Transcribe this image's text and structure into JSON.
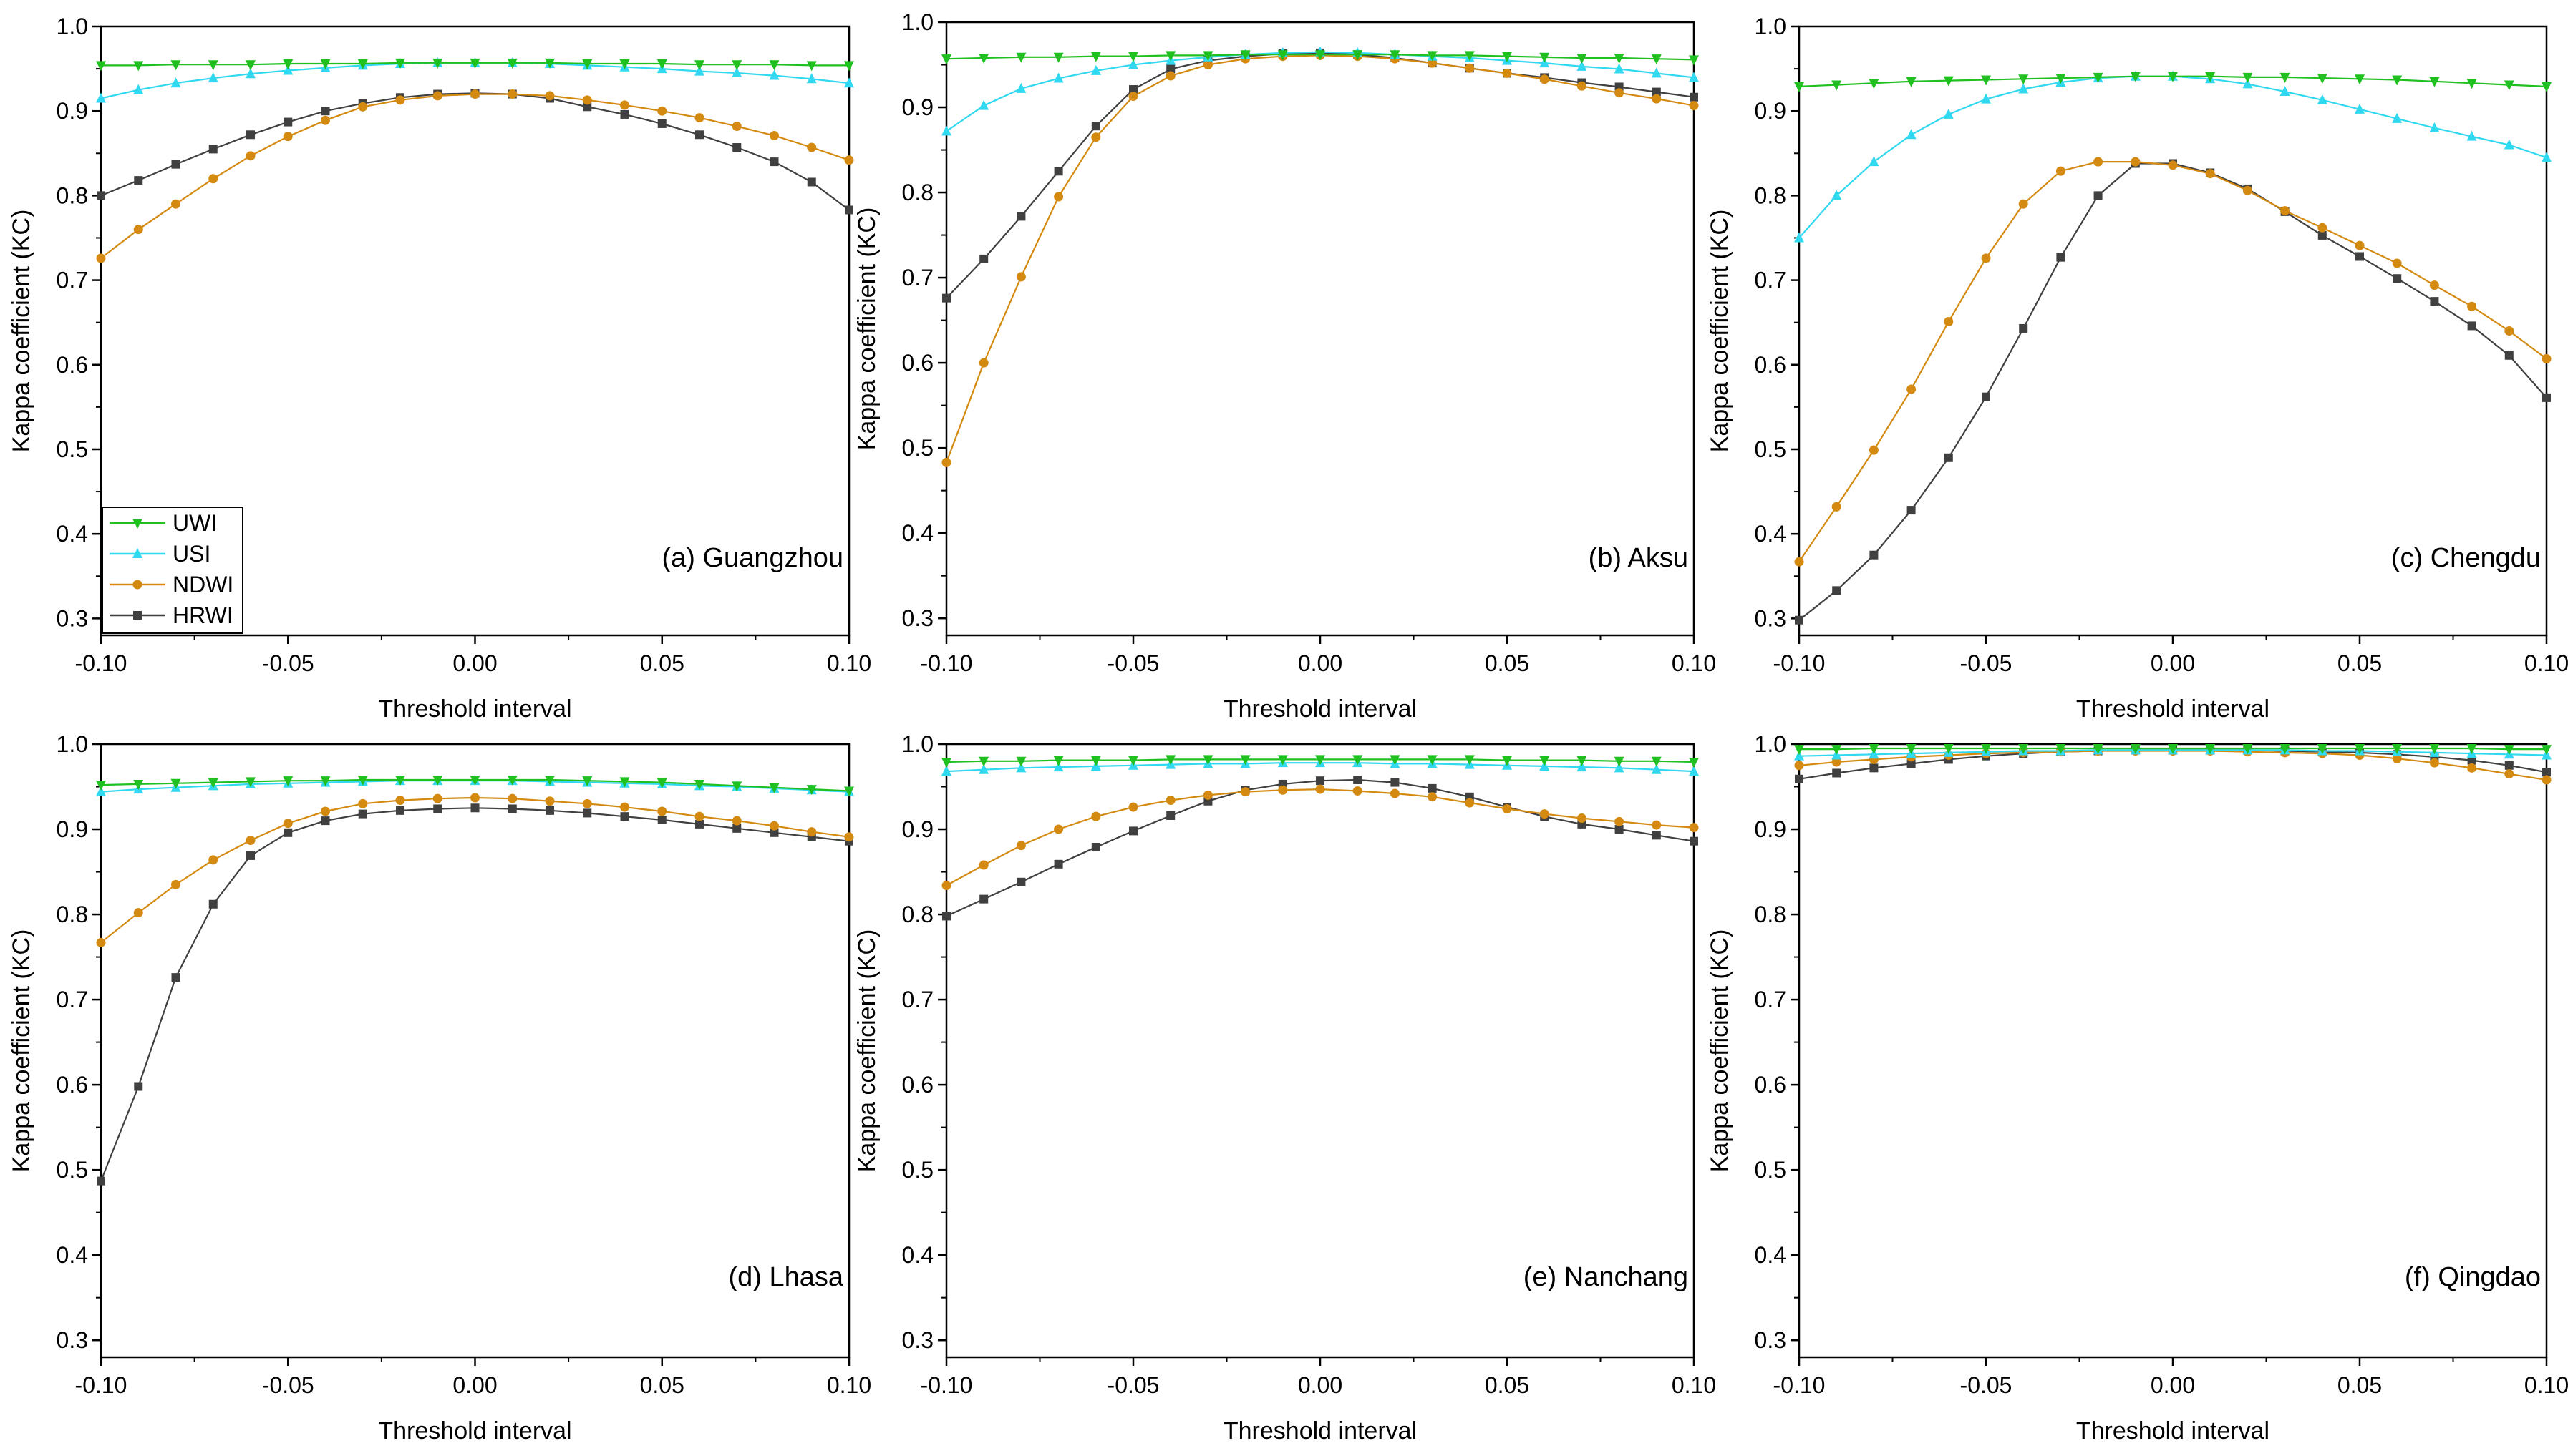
{
  "figure": {
    "legend_entries": [
      "UWI",
      "USI",
      "NDWI",
      "HRWI"
    ]
  },
  "colors": {
    "UWI": "#20c020",
    "USI": "#30d8f0",
    "NDWI": "#d48a10",
    "HRWI": "#404040"
  },
  "markers": {
    "UWI": "triangle-down",
    "USI": "triangle-up",
    "NDWI": "circle",
    "HRWI": "square"
  },
  "chart_data": [
    {
      "type": "line",
      "annotation": "(a) Guangzhou",
      "xlabel": "Threshold interval",
      "ylabel": "Kappa coefficient (KC)",
      "xlim": [
        -0.1,
        0.1
      ],
      "ylim": [
        0.28,
        1.0
      ],
      "xticks": [
        "-0.10",
        "-0.05",
        "0.00",
        "0.05",
        "0.10"
      ],
      "yticks": [
        "0.3",
        "0.4",
        "0.5",
        "0.6",
        "0.7",
        "0.8",
        "0.9",
        "1.0"
      ],
      "legend": "bottom-left",
      "x": [
        -0.1,
        -0.09,
        -0.08,
        -0.07,
        -0.06,
        -0.05,
        -0.04,
        -0.03,
        -0.02,
        -0.01,
        0.0,
        0.01,
        0.02,
        0.03,
        0.04,
        0.05,
        0.06,
        0.07,
        0.08,
        0.09,
        0.1
      ],
      "series": [
        {
          "name": "UWI",
          "values": [
            0.954,
            0.954,
            0.955,
            0.955,
            0.955,
            0.956,
            0.956,
            0.956,
            0.957,
            0.957,
            0.957,
            0.957,
            0.957,
            0.956,
            0.956,
            0.956,
            0.955,
            0.955,
            0.955,
            0.954,
            0.954
          ]
        },
        {
          "name": "USI",
          "values": [
            0.915,
            0.925,
            0.933,
            0.939,
            0.944,
            0.948,
            0.951,
            0.954,
            0.956,
            0.957,
            0.957,
            0.957,
            0.956,
            0.954,
            0.952,
            0.95,
            0.947,
            0.945,
            0.942,
            0.938,
            0.933
          ]
        },
        {
          "name": "NDWI",
          "values": [
            0.726,
            0.76,
            0.79,
            0.82,
            0.847,
            0.87,
            0.889,
            0.905,
            0.913,
            0.918,
            0.92,
            0.92,
            0.918,
            0.913,
            0.907,
            0.9,
            0.892,
            0.882,
            0.871,
            0.857,
            0.842
          ]
        },
        {
          "name": "HRWI",
          "values": [
            0.8,
            0.818,
            0.837,
            0.855,
            0.872,
            0.887,
            0.9,
            0.909,
            0.916,
            0.92,
            0.921,
            0.92,
            0.915,
            0.905,
            0.896,
            0.885,
            0.872,
            0.857,
            0.84,
            0.816,
            0.783
          ]
        }
      ]
    },
    {
      "type": "line",
      "annotation": "(b) Aksu",
      "xlabel": "Threshold interval",
      "ylabel": "Kappa coefficient (KC)",
      "xlim": [
        -0.1,
        0.1
      ],
      "ylim": [
        0.28,
        1.0
      ],
      "xticks": [
        "-0.10",
        "-0.05",
        "0.00",
        "0.05",
        "0.10"
      ],
      "yticks": [
        "0.3",
        "0.4",
        "0.5",
        "0.6",
        "0.7",
        "0.8",
        "0.9",
        "1.0"
      ],
      "x": [
        -0.1,
        -0.09,
        -0.08,
        -0.07,
        -0.06,
        -0.05,
        -0.04,
        -0.03,
        -0.02,
        -0.01,
        0.0,
        0.01,
        0.02,
        0.03,
        0.04,
        0.05,
        0.06,
        0.07,
        0.08,
        0.09,
        0.1
      ],
      "series": [
        {
          "name": "UWI",
          "values": [
            0.957,
            0.958,
            0.959,
            0.959,
            0.96,
            0.96,
            0.961,
            0.961,
            0.962,
            0.962,
            0.962,
            0.962,
            0.962,
            0.961,
            0.961,
            0.96,
            0.959,
            0.958,
            0.958,
            0.957,
            0.956
          ]
        },
        {
          "name": "USI",
          "values": [
            0.872,
            0.902,
            0.922,
            0.934,
            0.943,
            0.95,
            0.955,
            0.959,
            0.962,
            0.964,
            0.965,
            0.964,
            0.962,
            0.96,
            0.958,
            0.955,
            0.952,
            0.948,
            0.945,
            0.94,
            0.935
          ]
        },
        {
          "name": "NDWI",
          "values": [
            0.483,
            0.6,
            0.701,
            0.795,
            0.865,
            0.913,
            0.937,
            0.95,
            0.957,
            0.96,
            0.961,
            0.96,
            0.957,
            0.952,
            0.946,
            0.94,
            0.933,
            0.925,
            0.917,
            0.91,
            0.902
          ]
        },
        {
          "name": "HRWI",
          "values": [
            0.676,
            0.722,
            0.772,
            0.825,
            0.878,
            0.921,
            0.945,
            0.955,
            0.96,
            0.963,
            0.964,
            0.962,
            0.958,
            0.952,
            0.946,
            0.94,
            0.935,
            0.929,
            0.924,
            0.918,
            0.912
          ]
        }
      ]
    },
    {
      "type": "line",
      "annotation": "(c) Chengdu",
      "xlabel": "Threshold interval",
      "ylabel": "Kappa coefficient (KC)",
      "xlim": [
        -0.1,
        0.1
      ],
      "ylim": [
        0.28,
        1.0
      ],
      "xticks": [
        "-0.10",
        "-0.05",
        "0.00",
        "0.05",
        "0.10"
      ],
      "yticks": [
        "0.3",
        "0.4",
        "0.5",
        "0.6",
        "0.7",
        "0.8",
        "0.9",
        "1.0"
      ],
      "x": [
        -0.1,
        -0.09,
        -0.08,
        -0.07,
        -0.06,
        -0.05,
        -0.04,
        -0.03,
        -0.02,
        -0.01,
        0.0,
        0.01,
        0.02,
        0.03,
        0.04,
        0.05,
        0.06,
        0.07,
        0.08,
        0.09,
        0.1
      ],
      "series": [
        {
          "name": "UWI",
          "values": [
            0.929,
            0.931,
            0.933,
            0.935,
            0.936,
            0.937,
            0.938,
            0.939,
            0.94,
            0.941,
            0.941,
            0.941,
            0.94,
            0.94,
            0.939,
            0.938,
            0.937,
            0.935,
            0.933,
            0.931,
            0.929
          ]
        },
        {
          "name": "USI",
          "values": [
            0.75,
            0.8,
            0.84,
            0.872,
            0.896,
            0.914,
            0.926,
            0.934,
            0.939,
            0.941,
            0.941,
            0.938,
            0.932,
            0.923,
            0.913,
            0.902,
            0.891,
            0.88,
            0.87,
            0.86,
            0.845
          ]
        },
        {
          "name": "NDWI",
          "values": [
            0.367,
            0.432,
            0.499,
            0.571,
            0.651,
            0.726,
            0.79,
            0.829,
            0.84,
            0.84,
            0.836,
            0.826,
            0.806,
            0.782,
            0.762,
            0.741,
            0.72,
            0.694,
            0.669,
            0.64,
            0.607
          ]
        },
        {
          "name": "HRWI",
          "values": [
            0.298,
            0.333,
            0.375,
            0.428,
            0.49,
            0.562,
            0.643,
            0.727,
            0.8,
            0.838,
            0.838,
            0.827,
            0.808,
            0.781,
            0.753,
            0.728,
            0.702,
            0.675,
            0.646,
            0.611,
            0.561
          ]
        }
      ]
    },
    {
      "type": "line",
      "annotation": "(d) Lhasa",
      "xlabel": "Threshold interval",
      "ylabel": "Kappa coefficient (KC)",
      "xlim": [
        -0.1,
        0.1
      ],
      "ylim": [
        0.28,
        1.0
      ],
      "xticks": [
        "-0.10",
        "-0.05",
        "0.00",
        "0.05",
        "0.10"
      ],
      "yticks": [
        "0.3",
        "0.4",
        "0.5",
        "0.6",
        "0.7",
        "0.8",
        "0.9",
        "1.0"
      ],
      "x": [
        -0.1,
        -0.09,
        -0.08,
        -0.07,
        -0.06,
        -0.05,
        -0.04,
        -0.03,
        -0.02,
        -0.01,
        0.0,
        0.01,
        0.02,
        0.03,
        0.04,
        0.05,
        0.06,
        0.07,
        0.08,
        0.09,
        0.1
      ],
      "series": [
        {
          "name": "UWI",
          "values": [
            0.952,
            0.953,
            0.954,
            0.955,
            0.956,
            0.957,
            0.957,
            0.958,
            0.958,
            0.958,
            0.958,
            0.958,
            0.958,
            0.957,
            0.956,
            0.955,
            0.953,
            0.951,
            0.949,
            0.947,
            0.945
          ]
        },
        {
          "name": "USI",
          "values": [
            0.944,
            0.947,
            0.949,
            0.951,
            0.953,
            0.954,
            0.955,
            0.956,
            0.957,
            0.957,
            0.957,
            0.957,
            0.956,
            0.955,
            0.954,
            0.953,
            0.951,
            0.95,
            0.948,
            0.946,
            0.944
          ]
        },
        {
          "name": "NDWI",
          "values": [
            0.767,
            0.802,
            0.835,
            0.864,
            0.887,
            0.907,
            0.921,
            0.93,
            0.934,
            0.936,
            0.937,
            0.936,
            0.933,
            0.93,
            0.926,
            0.921,
            0.915,
            0.91,
            0.904,
            0.897,
            0.891
          ]
        },
        {
          "name": "HRWI",
          "values": [
            0.487,
            0.598,
            0.726,
            0.812,
            0.869,
            0.896,
            0.91,
            0.918,
            0.922,
            0.924,
            0.925,
            0.924,
            0.922,
            0.919,
            0.915,
            0.911,
            0.906,
            0.901,
            0.896,
            0.891,
            0.886
          ]
        }
      ]
    },
    {
      "type": "line",
      "annotation": "(e) Nanchang",
      "xlabel": "Threshold interval",
      "ylabel": "Kappa coefficient (KC)",
      "xlim": [
        -0.1,
        0.1
      ],
      "ylim": [
        0.28,
        1.0
      ],
      "xticks": [
        "-0.10",
        "-0.05",
        "0.00",
        "0.05",
        "0.10"
      ],
      "yticks": [
        "0.3",
        "0.4",
        "0.5",
        "0.6",
        "0.7",
        "0.8",
        "0.9",
        "1.0"
      ],
      "x": [
        -0.1,
        -0.09,
        -0.08,
        -0.07,
        -0.06,
        -0.05,
        -0.04,
        -0.03,
        -0.02,
        -0.01,
        0.0,
        0.01,
        0.02,
        0.03,
        0.04,
        0.05,
        0.06,
        0.07,
        0.08,
        0.09,
        0.1
      ],
      "series": [
        {
          "name": "UWI",
          "values": [
            0.979,
            0.98,
            0.98,
            0.981,
            0.981,
            0.981,
            0.982,
            0.982,
            0.982,
            0.982,
            0.982,
            0.982,
            0.982,
            0.982,
            0.982,
            0.981,
            0.981,
            0.981,
            0.98,
            0.98,
            0.979
          ]
        },
        {
          "name": "USI",
          "values": [
            0.968,
            0.97,
            0.972,
            0.973,
            0.974,
            0.975,
            0.976,
            0.977,
            0.977,
            0.978,
            0.978,
            0.978,
            0.977,
            0.977,
            0.976,
            0.975,
            0.974,
            0.973,
            0.972,
            0.97,
            0.968
          ]
        },
        {
          "name": "NDWI",
          "values": [
            0.834,
            0.858,
            0.881,
            0.9,
            0.915,
            0.926,
            0.934,
            0.94,
            0.944,
            0.946,
            0.947,
            0.945,
            0.942,
            0.938,
            0.931,
            0.924,
            0.918,
            0.913,
            0.909,
            0.905,
            0.902
          ]
        },
        {
          "name": "HRWI",
          "values": [
            0.798,
            0.818,
            0.838,
            0.859,
            0.879,
            0.898,
            0.916,
            0.933,
            0.946,
            0.953,
            0.957,
            0.958,
            0.955,
            0.948,
            0.938,
            0.926,
            0.915,
            0.906,
            0.9,
            0.893,
            0.886
          ]
        }
      ]
    },
    {
      "type": "line",
      "annotation": "(f) Qingdao",
      "xlabel": "Threshold interval",
      "ylabel": "Kappa coefficient (KC)",
      "xlim": [
        -0.1,
        0.1
      ],
      "ylim": [
        0.28,
        1.0
      ],
      "xticks": [
        "-0.10",
        "-0.05",
        "0.00",
        "0.05",
        "0.10"
      ],
      "yticks": [
        "0.3",
        "0.4",
        "0.5",
        "0.6",
        "0.7",
        "0.8",
        "0.9",
        "1.0"
      ],
      "x": [
        -0.1,
        -0.09,
        -0.08,
        -0.07,
        -0.06,
        -0.05,
        -0.04,
        -0.03,
        -0.02,
        -0.01,
        0.0,
        0.01,
        0.02,
        0.03,
        0.04,
        0.05,
        0.06,
        0.07,
        0.08,
        0.09,
        0.1
      ],
      "series": [
        {
          "name": "UWI",
          "values": [
            0.994,
            0.994,
            0.995,
            0.995,
            0.995,
            0.995,
            0.995,
            0.995,
            0.995,
            0.995,
            0.995,
            0.995,
            0.995,
            0.995,
            0.995,
            0.995,
            0.995,
            0.995,
            0.995,
            0.994,
            0.994
          ]
        },
        {
          "name": "USI",
          "values": [
            0.986,
            0.987,
            0.988,
            0.989,
            0.99,
            0.991,
            0.992,
            0.992,
            0.993,
            0.993,
            0.993,
            0.993,
            0.993,
            0.993,
            0.992,
            0.992,
            0.991,
            0.99,
            0.989,
            0.988,
            0.987
          ]
        },
        {
          "name": "NDWI",
          "values": [
            0.975,
            0.979,
            0.982,
            0.985,
            0.987,
            0.989,
            0.99,
            0.991,
            0.992,
            0.992,
            0.992,
            0.992,
            0.991,
            0.99,
            0.989,
            0.987,
            0.983,
            0.978,
            0.972,
            0.965,
            0.958
          ]
        },
        {
          "name": "HRWI",
          "values": [
            0.959,
            0.966,
            0.972,
            0.977,
            0.982,
            0.986,
            0.989,
            0.991,
            0.992,
            0.993,
            0.993,
            0.993,
            0.993,
            0.992,
            0.991,
            0.99,
            0.988,
            0.985,
            0.981,
            0.975,
            0.967
          ]
        }
      ]
    }
  ]
}
